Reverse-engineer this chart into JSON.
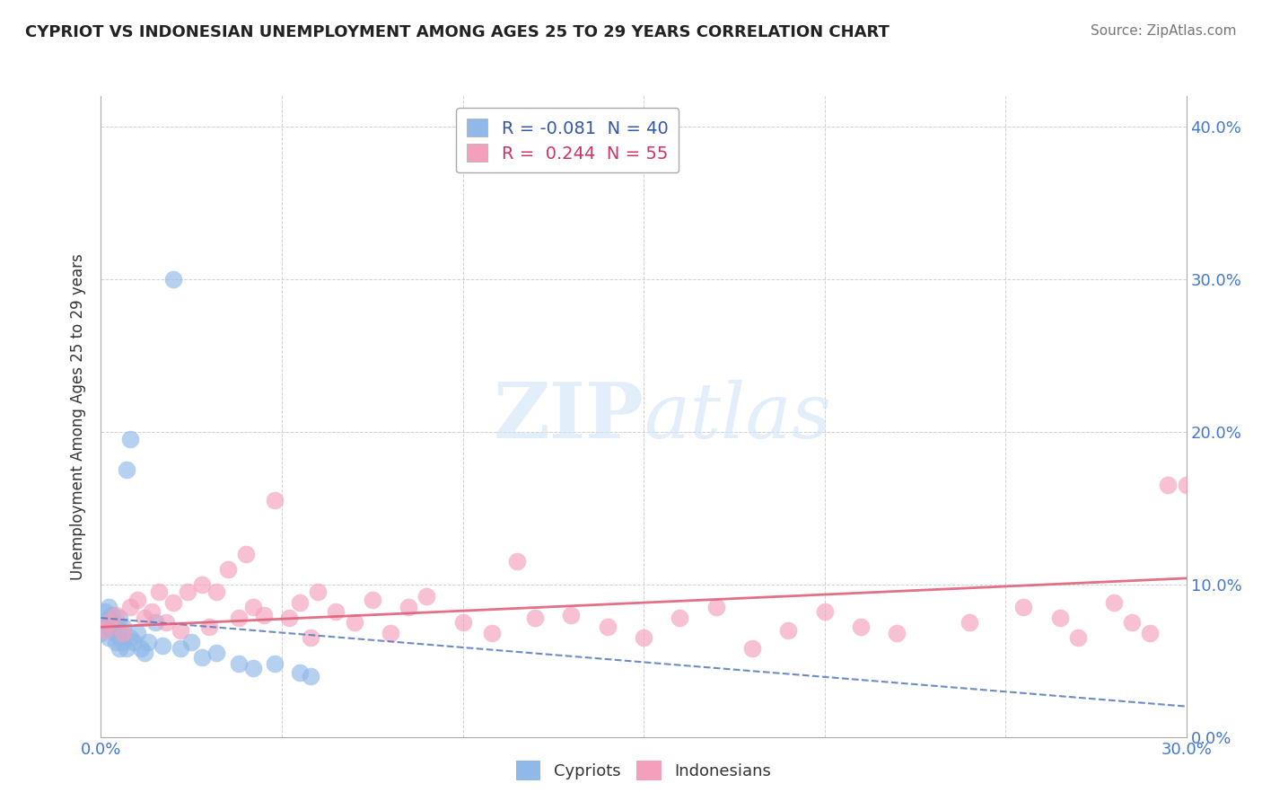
{
  "title": "CYPRIOT VS INDONESIAN UNEMPLOYMENT AMONG AGES 25 TO 29 YEARS CORRELATION CHART",
  "source": "Source: ZipAtlas.com",
  "ylabel_label": "Unemployment Among Ages 25 to 29 years",
  "legend_cypriot": "R = -0.081  N = 40",
  "legend_indonesian": "R =  0.244  N = 55",
  "cypriot_color": "#90b8e8",
  "indonesian_color": "#f4a0bc",
  "trendline_cypriot_color": "#5577bb",
  "trendline_indonesian_color": "#e0607a",
  "background_color": "#ffffff",
  "xlim": [
    0.0,
    0.3
  ],
  "ylim": [
    0.0,
    0.42
  ],
  "cypriot_x": [
    0.0,
    0.0,
    0.001,
    0.001,
    0.002,
    0.002,
    0.002,
    0.003,
    0.003,
    0.003,
    0.004,
    0.004,
    0.004,
    0.005,
    0.005,
    0.005,
    0.005,
    0.006,
    0.006,
    0.007,
    0.007,
    0.008,
    0.008,
    0.009,
    0.01,
    0.011,
    0.012,
    0.013,
    0.015,
    0.017,
    0.02,
    0.022,
    0.025,
    0.028,
    0.032,
    0.038,
    0.042,
    0.048,
    0.055,
    0.058
  ],
  "cypriot_y": [
    0.075,
    0.068,
    0.082,
    0.072,
    0.085,
    0.078,
    0.065,
    0.08,
    0.075,
    0.07,
    0.072,
    0.068,
    0.062,
    0.078,
    0.065,
    0.058,
    0.07,
    0.062,
    0.072,
    0.058,
    0.175,
    0.195,
    0.065,
    0.062,
    0.068,
    0.058,
    0.055,
    0.062,
    0.075,
    0.06,
    0.3,
    0.058,
    0.062,
    0.052,
    0.055,
    0.048,
    0.045,
    0.048,
    0.042,
    0.04
  ],
  "indonesian_x": [
    0.001,
    0.002,
    0.004,
    0.006,
    0.008,
    0.01,
    0.012,
    0.014,
    0.016,
    0.018,
    0.02,
    0.022,
    0.024,
    0.028,
    0.03,
    0.032,
    0.035,
    0.038,
    0.04,
    0.042,
    0.045,
    0.048,
    0.052,
    0.055,
    0.058,
    0.06,
    0.065,
    0.07,
    0.075,
    0.08,
    0.085,
    0.09,
    0.1,
    0.108,
    0.115,
    0.12,
    0.13,
    0.14,
    0.15,
    0.16,
    0.17,
    0.18,
    0.19,
    0.2,
    0.21,
    0.22,
    0.24,
    0.255,
    0.265,
    0.27,
    0.28,
    0.285,
    0.29,
    0.295,
    0.3
  ],
  "indonesian_y": [
    0.07,
    0.075,
    0.08,
    0.068,
    0.085,
    0.09,
    0.078,
    0.082,
    0.095,
    0.075,
    0.088,
    0.07,
    0.095,
    0.1,
    0.072,
    0.095,
    0.11,
    0.078,
    0.12,
    0.085,
    0.08,
    0.155,
    0.078,
    0.088,
    0.065,
    0.095,
    0.082,
    0.075,
    0.09,
    0.068,
    0.085,
    0.092,
    0.075,
    0.068,
    0.115,
    0.078,
    0.08,
    0.072,
    0.065,
    0.078,
    0.085,
    0.058,
    0.07,
    0.082,
    0.072,
    0.068,
    0.075,
    0.085,
    0.078,
    0.065,
    0.088,
    0.075,
    0.068,
    0.165,
    0.165
  ],
  "trend_cyp_x0": 0.0,
  "trend_cyp_x1": 0.3,
  "trend_cyp_y0": 0.078,
  "trend_cyp_y1": 0.02,
  "trend_ind_x0": 0.0,
  "trend_ind_x1": 0.3,
  "trend_ind_y0": 0.072,
  "trend_ind_y1": 0.104
}
